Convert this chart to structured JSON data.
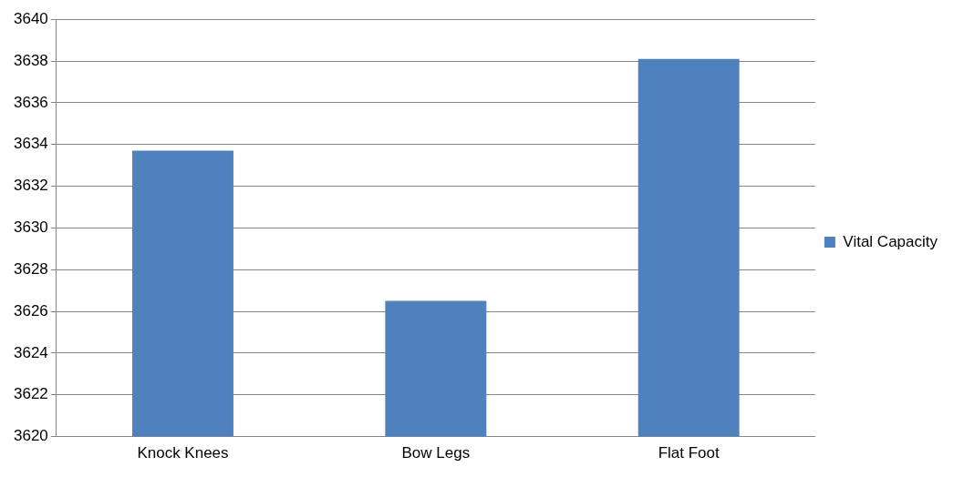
{
  "chart_data": {
    "type": "bar",
    "categories": [
      "Knock Knees",
      "Bow Legs",
      "Flat Foot"
    ],
    "series": [
      {
        "name": "Vital Capacity",
        "color": "#4f81bd",
        "values": [
          3633.7,
          3626.5,
          3638.1
        ]
      }
    ],
    "ylim": [
      3620,
      3640
    ],
    "yticks": [
      3620,
      3622,
      3624,
      3626,
      3628,
      3630,
      3632,
      3634,
      3636,
      3638,
      3640
    ],
    "grid": "y",
    "legend": "right"
  }
}
